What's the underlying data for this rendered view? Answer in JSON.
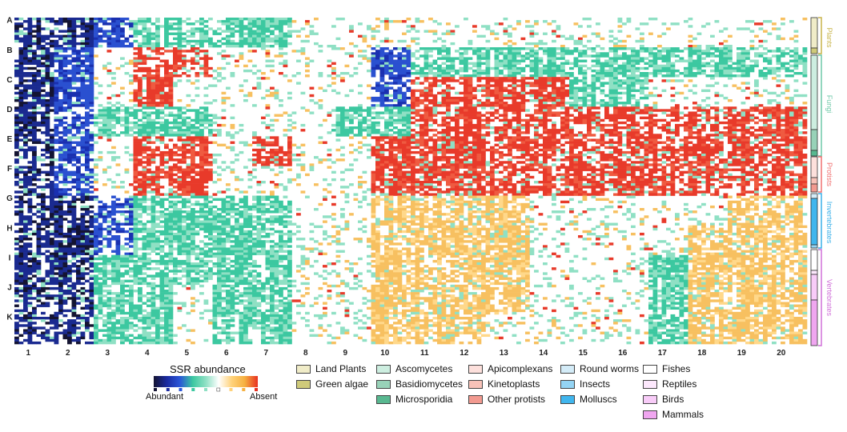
{
  "chart_data": {
    "type": "heatmap",
    "title": "",
    "row_labels": [
      "A",
      "B",
      "C",
      "D",
      "E",
      "F",
      "G",
      "H",
      "I",
      "J",
      "K"
    ],
    "column_labels": [
      "1",
      "2",
      "3",
      "4",
      "5",
      "6",
      "7",
      "8",
      "9",
      "10",
      "11",
      "12",
      "13",
      "14",
      "15",
      "16",
      "17",
      "18",
      "19",
      "20"
    ],
    "colorbar": {
      "title": "SSR abundance",
      "low_label": "Abundant",
      "high_label": "Absent",
      "colors": [
        "#141432",
        "#1a2aa0",
        "#2a55d8",
        "#3cc8a0",
        "#8fe0c4",
        "#ffffff",
        "#ffd27a",
        "#f5b040",
        "#e83020"
      ]
    },
    "groups": [
      {
        "name": "Plants",
        "color": "#c8b44a"
      },
      {
        "name": "Fungi",
        "color": "#6ec8a8"
      },
      {
        "name": "Protists",
        "color": "#f07070"
      },
      {
        "name": "Invertebrates",
        "color": "#3ab0e8"
      },
      {
        "name": "Vertebrates",
        "color": "#d070d8"
      }
    ],
    "taxa_legend": [
      {
        "label": "Land Plants",
        "color": "#f0ecc8"
      },
      {
        "label": "Green algae",
        "color": "#cfca7a"
      },
      {
        "label": "Ascomycetes",
        "color": "#cdeee0"
      },
      {
        "label": "Basidiomycetes",
        "color": "#98d2b8"
      },
      {
        "label": "Microsporidia",
        "color": "#58b890"
      },
      {
        "label": "Apicomplexans",
        "color": "#fde0dc"
      },
      {
        "label": "Kinetoplasts",
        "color": "#f8c2b8"
      },
      {
        "label": "Other protists",
        "color": "#f29a90"
      },
      {
        "label": "Round worms",
        "color": "#d4ecf8"
      },
      {
        "label": "Insects",
        "color": "#94d4f4"
      },
      {
        "label": "Molluscs",
        "color": "#40b6ee"
      },
      {
        "label": "Fishes",
        "color": "#ffffff"
      },
      {
        "label": "Reptiles",
        "color": "#fde8fd"
      },
      {
        "label": "Birds",
        "color": "#f8ccf8"
      },
      {
        "label": "Mammals",
        "color": "#f0a6f0"
      }
    ],
    "row_groups": [
      {
        "group": "Plants",
        "taxon": "Land Plants",
        "rows": [
          "A",
          "B"
        ]
      },
      {
        "group": "Fungi",
        "taxon": "Ascomycetes",
        "rows": [
          "B",
          "C",
          "D"
        ]
      },
      {
        "group": "Protists",
        "taxon": "Other protists",
        "rows": [
          "E",
          "F"
        ]
      },
      {
        "group": "Invertebrates",
        "taxon": "Insects",
        "rows": [
          "G",
          "H"
        ]
      },
      {
        "group": "Vertebrates",
        "taxon": "Mammals",
        "rows": [
          "I",
          "J",
          "K"
        ]
      }
    ]
  }
}
